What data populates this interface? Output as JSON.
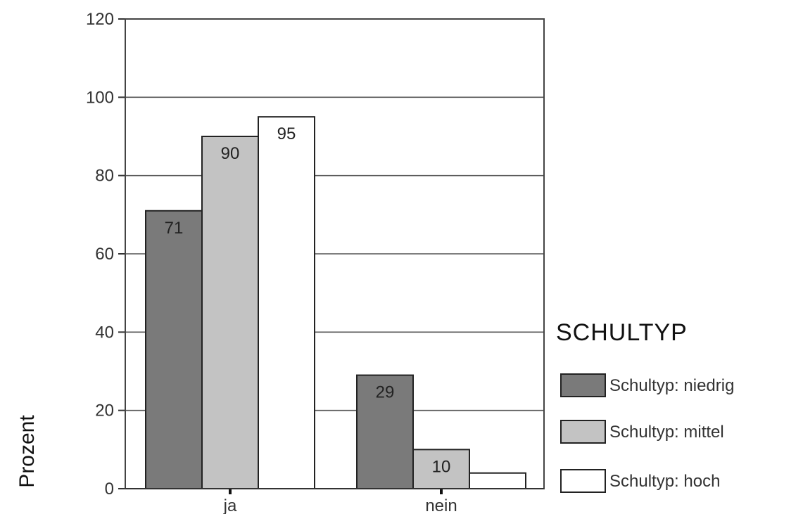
{
  "chart_data": {
    "type": "bar",
    "title": "",
    "xlabel": "",
    "ylabel": "Prozent",
    "ylim": [
      0,
      120
    ],
    "yticks": [
      0,
      20,
      40,
      60,
      80,
      100,
      120
    ],
    "grid": true,
    "legend_position": "right",
    "legend_title": "SCHULTYP",
    "categories": [
      "ja",
      "nein"
    ],
    "series": [
      {
        "name": "Schultyp: niedrig",
        "values": [
          71,
          29
        ],
        "labels": [
          "71",
          "29"
        ],
        "color": "#7a7a7a"
      },
      {
        "name": "Schultyp: mittel",
        "values": [
          90,
          10
        ],
        "labels": [
          "90",
          "10"
        ],
        "color": "#c3c3c3"
      },
      {
        "name": "Schultyp: hoch",
        "values": [
          95,
          4
        ],
        "labels": [
          "95",
          ""
        ],
        "color": "#ffffff"
      }
    ]
  }
}
